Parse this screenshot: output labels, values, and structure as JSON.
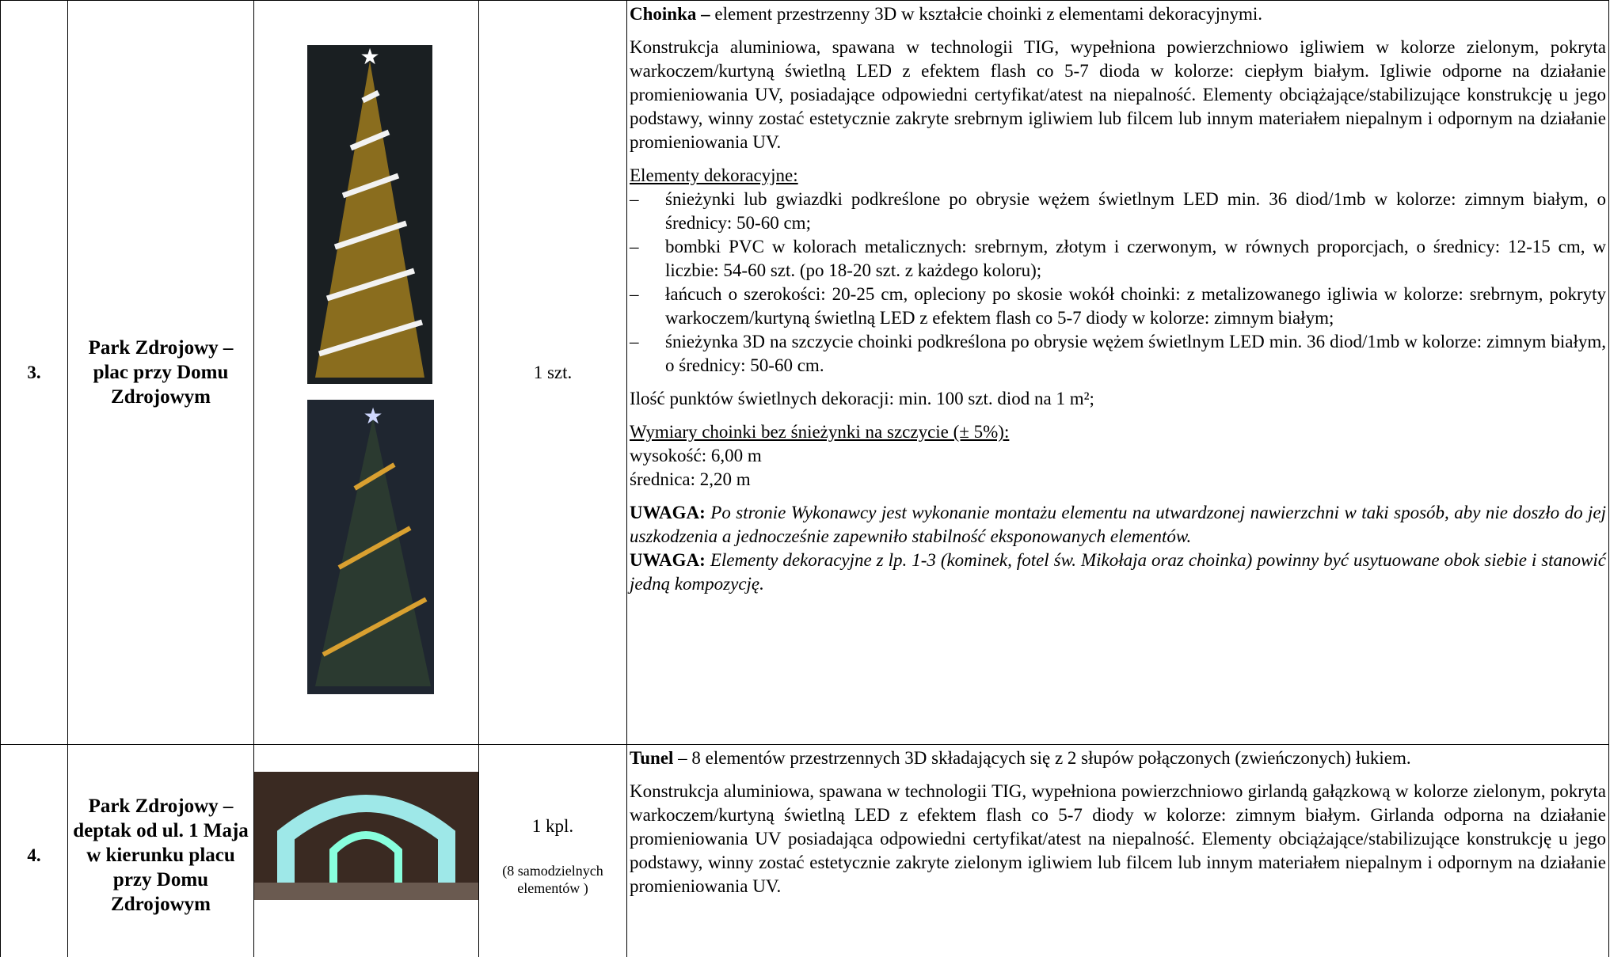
{
  "table": {
    "rows": [
      {
        "number": "3.",
        "location": "Park Zdrojowy – plac przy Domu Zdrojowym",
        "quantity": "1 szt.",
        "description": [
          {
            "lead": "Choinka –",
            "text": " element przestrzenny 3D w kształcie choinki z elementami dekoracyjnymi."
          },
          {
            "text": "Konstrukcja aluminiowa, spawana w technologii TIG, wypełniona powierzchniowo igliwiem w kolorze zielonym, pokryta warkoczem/kurtyną świetlną LED z efektem flash co 5-7 dioda w kolorze: ciepłym białym. Igliwie odporne na działanie promieniowania UV, posiadające odpowiedni certyfikat/atest na niepalność. Elementy obciążające/stabilizujące konstrukcję u jego podstawy, winny zostać estetycznie zakryte srebrnym igliwiem lub filcem lub innym materiałem niepalnym i odpornym na działanie promieniowania UV."
          },
          {
            "heading": "Elementy dekoracyjne:",
            "items": [
              "śnieżynki lub gwiazdki podkreślone po obrysie wężem świetlnym LED min. 36 diod/1mb w kolorze: zimnym białym, o średnicy: 50-60 cm;",
              "bombki PVC w kolorach metalicznych: srebrnym, złotym i czerwonym, w równych proporcjach, o średnicy: 12-15 cm, w liczbie: 54-60 szt. (po 18-20 szt. z każdego koloru);",
              "łańcuch o szerokości: 20-25 cm, opleciony po skosie wokół choinki: z metalizowanego igliwia w kolorze: srebrnym, pokryty warkoczem/kurtyną świetlną LED z efektem flash co 5-7 diody w kolorze: zimnym białym;",
              "śnieżynka 3D na szczycie choinki podkreślona po obrysie wężem świetlnym LED min. 36 diod/1mb w kolorze: zimnym białym, o średnicy: 50-60 cm."
            ]
          },
          {
            "text": "Ilość punktów świetlnych dekoracji: min. 100 szt. diod na 1 m²;"
          },
          {
            "heading": "Wymiary choinki bez śnieżynki na szczycie (± 5%):",
            "lines": [
              "wysokość: 6,00 m",
              "średnica: 2,20 m"
            ]
          },
          {
            "notes": [
              {
                "lead": "UWAGA:",
                "text": "Po stronie Wykonawcy jest wykonanie montażu elementu na utwardzonej nawierzchni w taki sposób, aby nie doszło do jej uszkodzenia a jednocześnie zapewniło stabilność eksponowanych elementów."
              },
              {
                "lead": "UWAGA:",
                "text": "Elementy dekoracyjne z lp. 1-3 (kominek, fotel św. Mikołaja oraz choinka) powinny być usytuowane obok siebie i stanowić jedną kompozycję."
              }
            ]
          }
        ]
      },
      {
        "number": "4.",
        "location": "Park Zdrojowy – deptak od ul. 1 Maja w kierunku placu przy Domu Zdrojowym",
        "quantity": "1 kpl.",
        "quantity_note": "(8 samodzielnych elementów )",
        "description": [
          {
            "lead": "Tunel",
            "text": " – 8 elementów przestrzennych 3D składających się z 2 słupów połączonych (zwieńczonych) łukiem."
          },
          {
            "text": "Konstrukcja aluminiowa, spawana w technologii TIG, wypełniona powierzchniowo girlandą gałązkową w kolorze zielonym, pokryta warkoczem/kurtyną świetlną LED z efektem flash co 5-7 diody w kolorze: zimnym białym. Girlanda odporna na działanie promieniowania UV posiadająca odpowiedni certyfikat/atest na niepalność. Elementy obciążające/stabilizujące konstrukcję u jego podstawy, winny zostać estetycznie zakryte zielonym igliwiem lub filcem lub innym materiałem niepalnym i odpornym na działanie promieniowania UV."
          }
        ]
      }
    ]
  }
}
